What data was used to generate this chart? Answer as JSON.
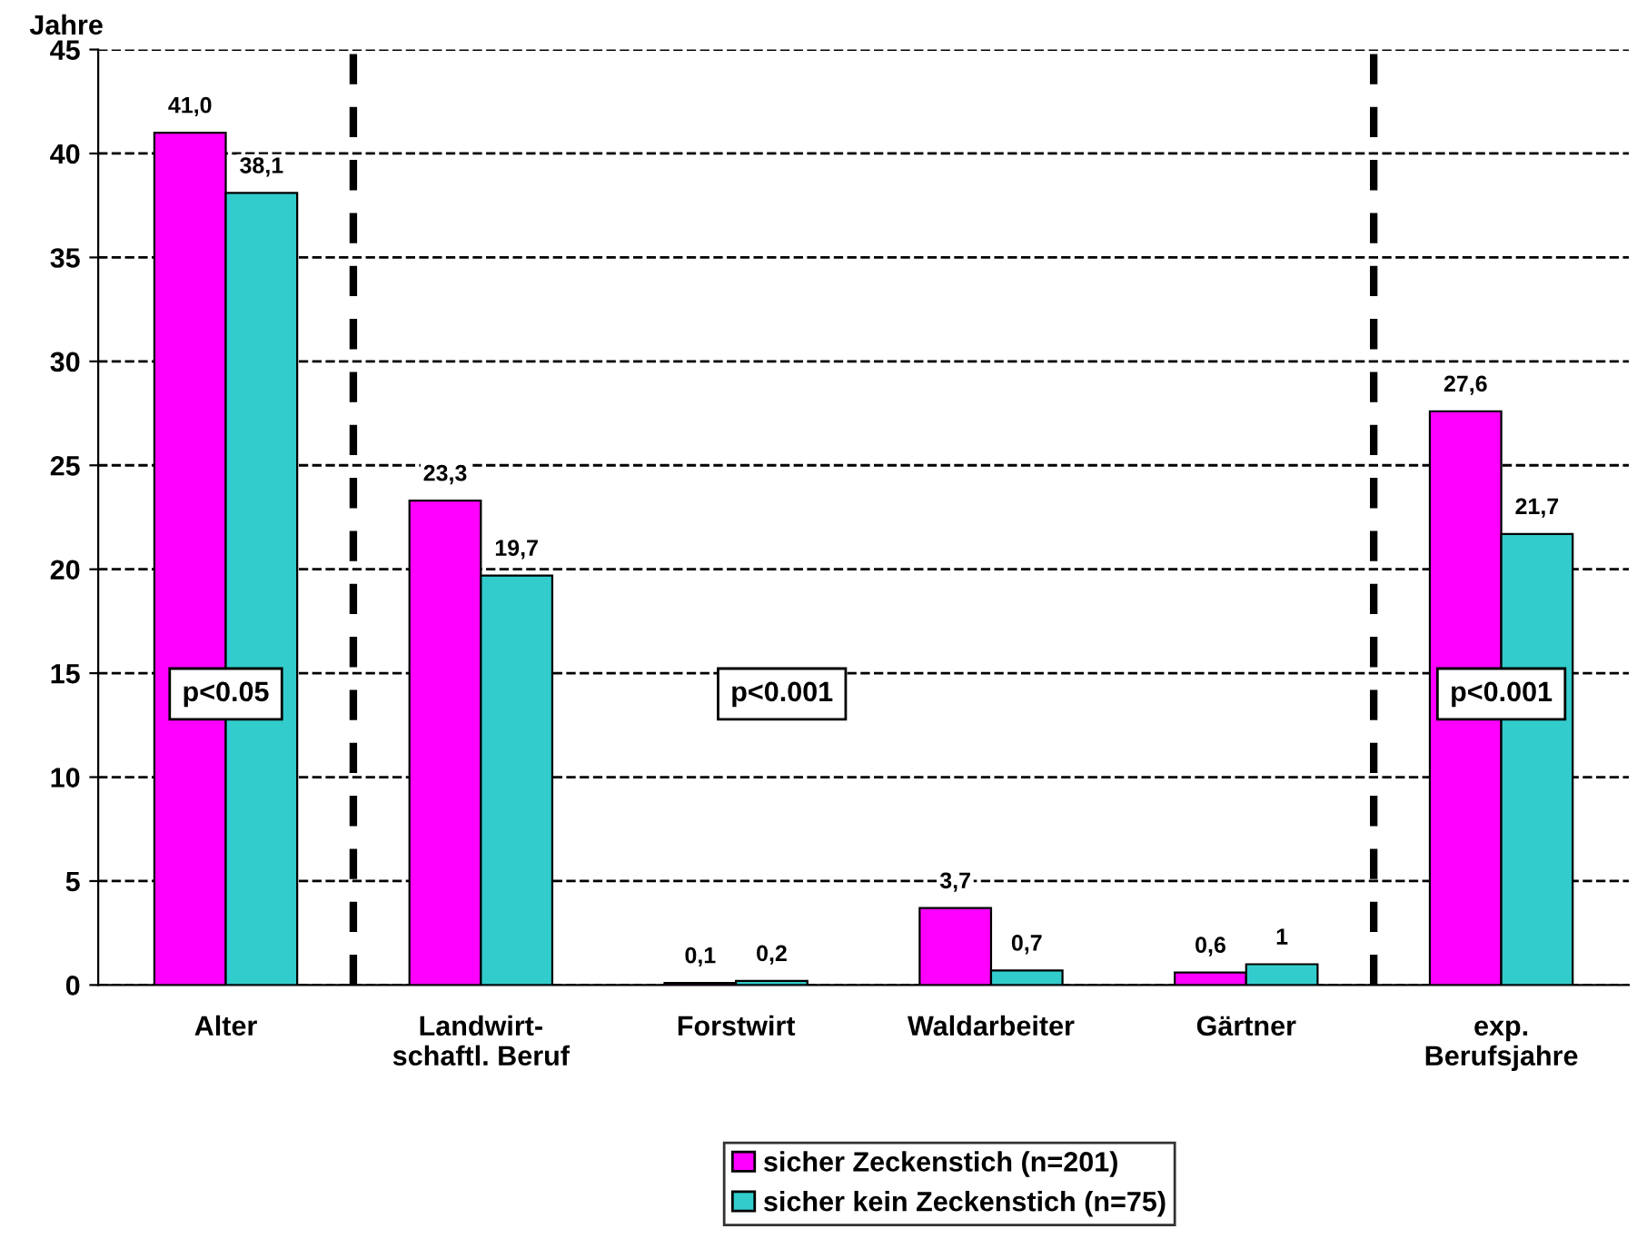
{
  "chart_data": {
    "type": "bar",
    "ylabel": "Jahre",
    "categories": [
      "Alter",
      "Landwirt-\nschaftl. Beruf",
      "Forstwirt",
      "Waldarbeiter",
      "Gärtner",
      "exp.\nBerufsjahre"
    ],
    "series": [
      {
        "name": "sicher Zeckenstich (n=201)",
        "color": "#ff00ff",
        "values": [
          41.0,
          23.3,
          0.1,
          3.7,
          0.6,
          27.6
        ],
        "value_labels": [
          "41,0",
          "23,3",
          "0,1",
          "3,7",
          "0,6",
          "27,6"
        ]
      },
      {
        "name": "sicher kein Zeckenstich (n=75)",
        "color": "#33cccc",
        "values": [
          38.1,
          19.7,
          0.2,
          0.7,
          1,
          21.7
        ],
        "value_labels": [
          "38,1",
          "19,7",
          "0,2",
          "0,7",
          "1",
          "21,7"
        ]
      }
    ],
    "ylim": [
      0,
      45
    ],
    "yticks": [
      0,
      5,
      10,
      15,
      20,
      25,
      30,
      35,
      40,
      45
    ],
    "grid": "y",
    "legend": "bottom",
    "annotations": [
      "p<0.05",
      "p<0.001",
      "p<0.001"
    ]
  }
}
